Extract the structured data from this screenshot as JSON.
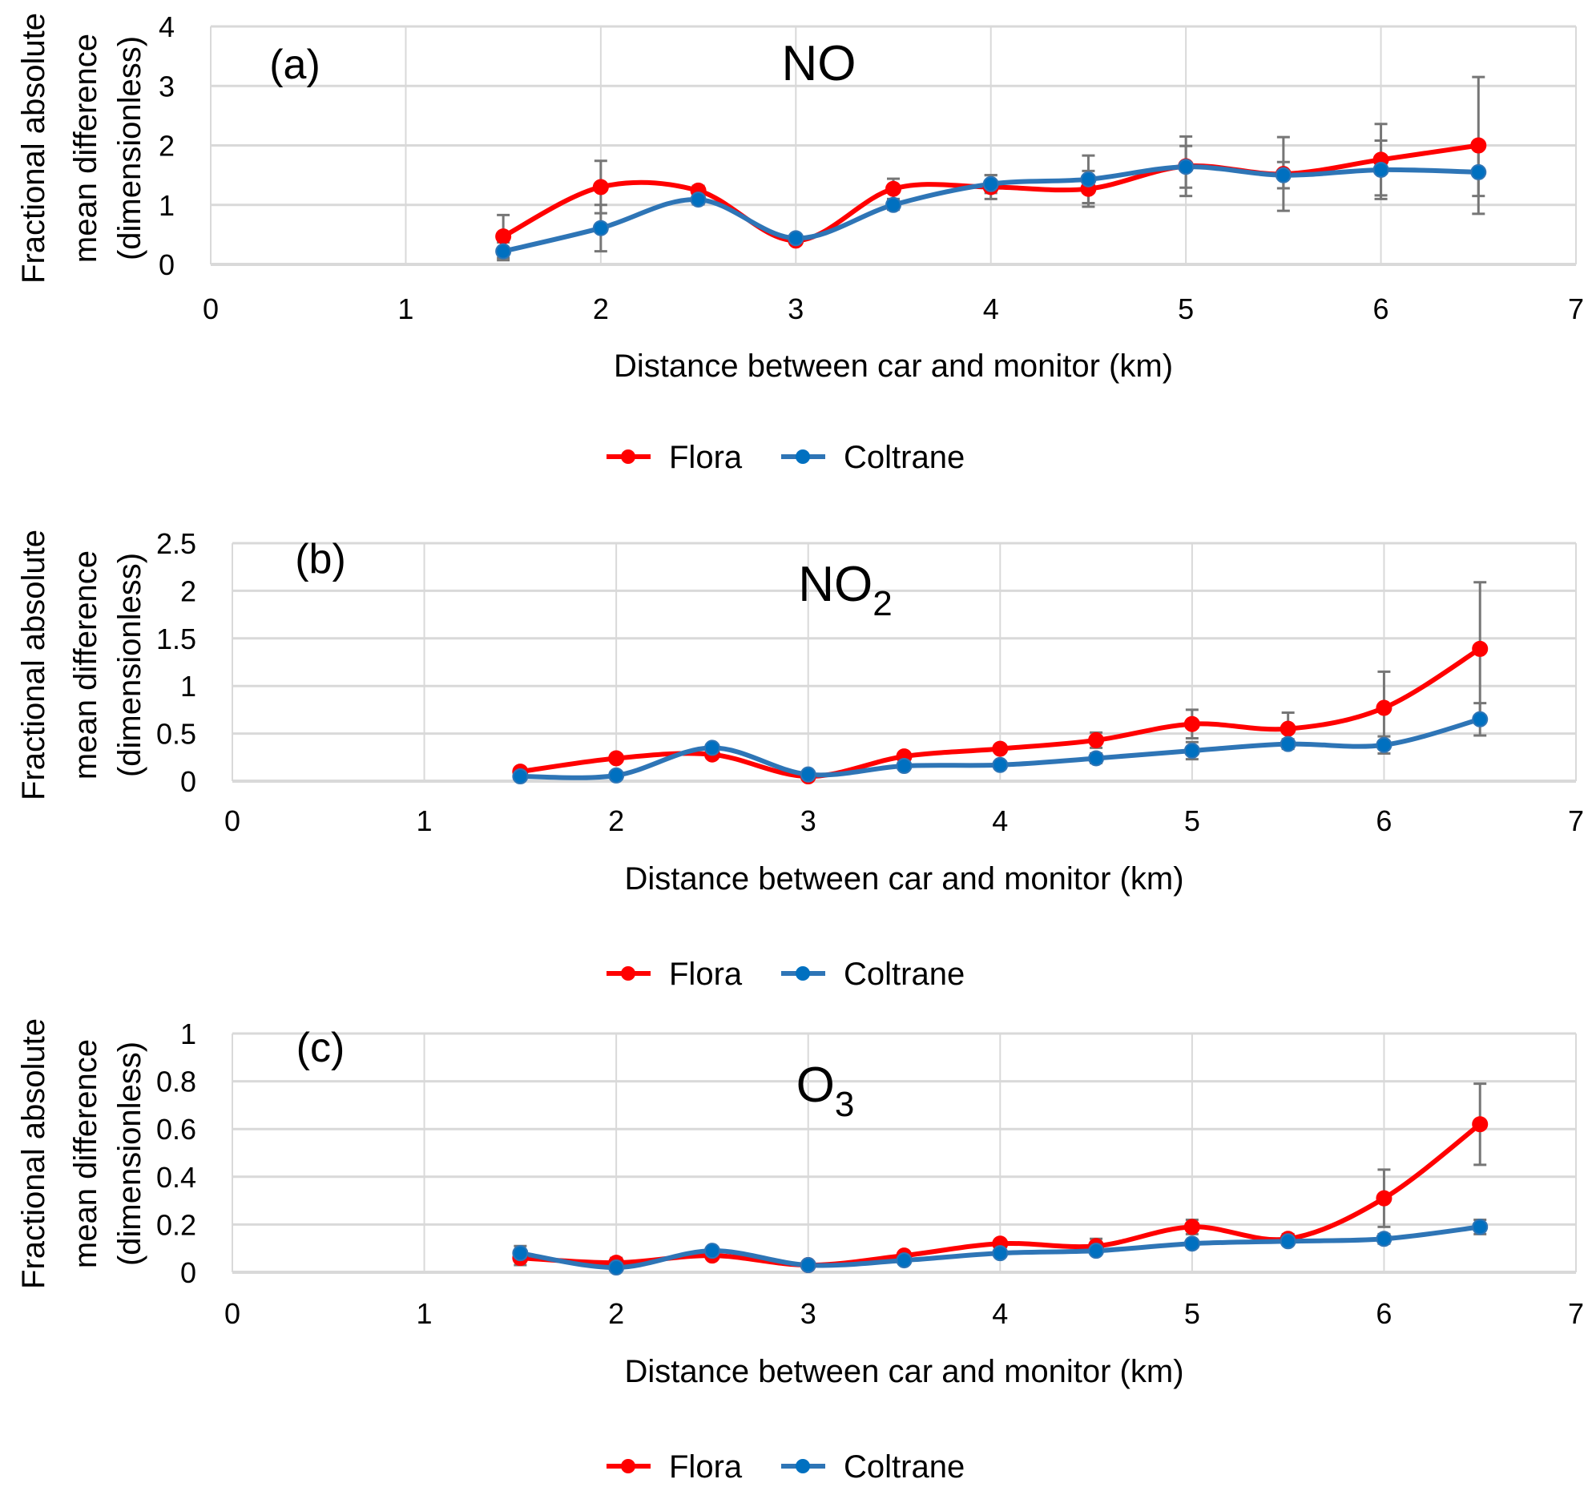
{
  "colors": {
    "flora": "#FF0000",
    "coltrane": "#2E75B6",
    "coltrane_marker": "#0070C0",
    "errorbar": "#767676",
    "grid": "#D9D9D9"
  },
  "legend": {
    "flora": "Flora",
    "coltrane": "Coltrane"
  },
  "chart_data": [
    {
      "type": "line",
      "panel": "(a)",
      "title": "NO",
      "title_sub": "",
      "xlabel": "Distance between car and monitor (km)",
      "ylabel": [
        "Fractional absolute",
        "mean difference",
        "(dimensionless)"
      ],
      "xlim": [
        0,
        7
      ],
      "ylim": [
        0,
        4
      ],
      "xticks": [
        0,
        1,
        2,
        3,
        4,
        5,
        6,
        7
      ],
      "yticks": [
        0,
        1,
        2,
        3,
        4
      ],
      "ytick_labels": [
        "0",
        "1",
        "2",
        "3",
        "4"
      ],
      "grid": true,
      "legend_position": "bottom",
      "x": [
        1.5,
        2,
        2.5,
        3,
        3.5,
        4,
        4.5,
        5,
        5.5,
        6,
        6.5
      ],
      "series": [
        {
          "name": "Flora",
          "values": [
            0.47,
            1.3,
            1.24,
            0.4,
            1.27,
            1.3,
            1.27,
            1.65,
            1.52,
            1.76,
            2.0
          ],
          "err": [
            0.36,
            0.44,
            0.08,
            0.05,
            0.17,
            0.2,
            0.3,
            0.5,
            0.62,
            0.6,
            1.15
          ]
        },
        {
          "name": "Coltrane",
          "values": [
            0.22,
            0.61,
            1.09,
            0.44,
            1.0,
            1.35,
            1.43,
            1.64,
            1.5,
            1.59,
            1.55
          ],
          "err": [
            0.15,
            0.39,
            0.08,
            0.05,
            0.08,
            0.15,
            0.4,
            0.35,
            0.22,
            0.49,
            0.4
          ]
        }
      ]
    },
    {
      "type": "line",
      "panel": "(b)",
      "title": "NO",
      "title_sub": "2",
      "xlabel": "Distance between car and monitor (km)",
      "ylabel": [
        "Fractional absolute",
        "mean difference",
        "(dimensionless)"
      ],
      "xlim": [
        0,
        7
      ],
      "ylim": [
        0,
        2.5
      ],
      "xticks": [
        0,
        1,
        2,
        3,
        4,
        5,
        6,
        7
      ],
      "yticks": [
        0,
        0.5,
        1,
        1.5,
        2,
        2.5
      ],
      "ytick_labels": [
        "0",
        "0.5",
        "1",
        "1.5",
        "2",
        "2.5"
      ],
      "grid": true,
      "legend_position": "bottom",
      "x": [
        1.5,
        2,
        2.5,
        3,
        3.5,
        4,
        4.5,
        5,
        5.5,
        6,
        6.5
      ],
      "series": [
        {
          "name": "Flora",
          "values": [
            0.1,
            0.24,
            0.28,
            0.05,
            0.26,
            0.34,
            0.43,
            0.6,
            0.55,
            0.77,
            1.39
          ],
          "err": [
            0.03,
            0.03,
            0.03,
            0.02,
            0.02,
            0.03,
            0.08,
            0.15,
            0.17,
            0.38,
            0.7
          ]
        },
        {
          "name": "Coltrane",
          "values": [
            0.05,
            0.06,
            0.35,
            0.07,
            0.16,
            0.17,
            0.24,
            0.32,
            0.39,
            0.38,
            0.65
          ],
          "err": [
            0.02,
            0.02,
            0.03,
            0.02,
            0.02,
            0.02,
            0.05,
            0.09,
            0.05,
            0.09,
            0.17
          ]
        }
      ]
    },
    {
      "type": "line",
      "panel": "(c)",
      "title": "O",
      "title_sub": "3",
      "xlabel": "Distance between car and monitor (km)",
      "ylabel": [
        "Fractional absolute",
        "mean difference",
        "(dimensionless)"
      ],
      "xlim": [
        0,
        7
      ],
      "ylim": [
        0,
        1
      ],
      "xticks": [
        0,
        1,
        2,
        3,
        4,
        5,
        6,
        7
      ],
      "yticks": [
        0,
        0.2,
        0.4,
        0.6,
        0.8,
        1
      ],
      "ytick_labels": [
        "0",
        "0.2",
        "0.4",
        "0.6",
        "0.8",
        "1"
      ],
      "grid": true,
      "legend_position": "bottom",
      "x": [
        1.5,
        2,
        2.5,
        3,
        3.5,
        4,
        4.5,
        5,
        5.5,
        6,
        6.5
      ],
      "series": [
        {
          "name": "Flora",
          "values": [
            0.06,
            0.04,
            0.07,
            0.03,
            0.07,
            0.12,
            0.11,
            0.19,
            0.14,
            0.31,
            0.62
          ],
          "err": [
            0.03,
            0.02,
            0.01,
            0.01,
            0.01,
            0.01,
            0.03,
            0.03,
            0.02,
            0.12,
            0.17
          ]
        },
        {
          "name": "Coltrane",
          "values": [
            0.08,
            0.02,
            0.09,
            0.03,
            0.05,
            0.08,
            0.09,
            0.12,
            0.13,
            0.14,
            0.19
          ],
          "err": [
            0.03,
            0.01,
            0.01,
            0.01,
            0.01,
            0.01,
            0.01,
            0.01,
            0.01,
            0.02,
            0.03
          ]
        }
      ]
    }
  ]
}
